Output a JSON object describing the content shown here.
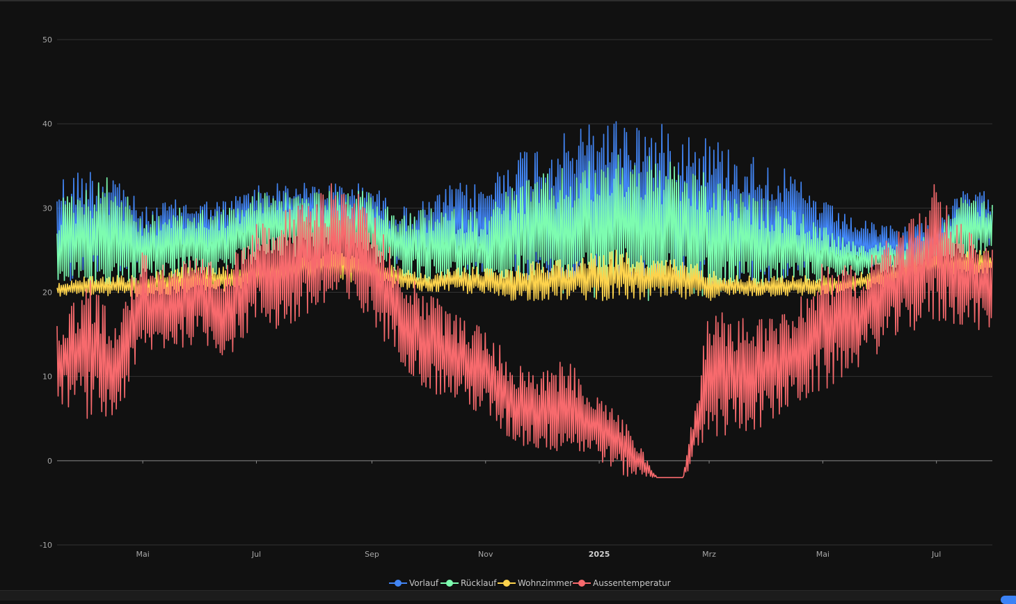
{
  "chart_data": {
    "type": "line",
    "title": "",
    "xlabel": "",
    "ylabel": "",
    "ylim": [
      -10,
      50
    ],
    "y_ticks": [
      50,
      40,
      30,
      20,
      10,
      0,
      -10
    ],
    "grid": true,
    "legend_position": "bottom-center",
    "x_range": [
      "2024-03-16",
      "2025-07-31"
    ],
    "x_ticks": [
      {
        "label": "Mai",
        "date": "2024-05-01",
        "bold": false
      },
      {
        "label": "Jul",
        "date": "2024-07-01",
        "bold": false
      },
      {
        "label": "Sep",
        "date": "2024-09-01",
        "bold": false
      },
      {
        "label": "Nov",
        "date": "2024-11-01",
        "bold": false
      },
      {
        "label": "2025",
        "date": "2025-01-01",
        "bold": true
      },
      {
        "label": "Mrz",
        "date": "2025-03-01",
        "bold": false
      },
      {
        "label": "Mai",
        "date": "2025-05-01",
        "bold": false
      },
      {
        "label": "Jul",
        "date": "2025-07-01",
        "bold": false
      }
    ],
    "series": [
      {
        "name": "Vorlauf",
        "color": "#4285f4",
        "points": [
          [
            "2024-03-16",
            34,
            20
          ],
          [
            "2024-04-01",
            35,
            21
          ],
          [
            "2024-04-15",
            35,
            22
          ],
          [
            "2024-05-01",
            30,
            22
          ],
          [
            "2024-05-15",
            31,
            23
          ],
          [
            "2024-06-01",
            31,
            24
          ],
          [
            "2024-06-15",
            31,
            24
          ],
          [
            "2024-07-01",
            33,
            25
          ],
          [
            "2024-07-15",
            33,
            26
          ],
          [
            "2024-08-01",
            33,
            26
          ],
          [
            "2024-08-15",
            33,
            26
          ],
          [
            "2024-09-01",
            33,
            25
          ],
          [
            "2024-09-15",
            30,
            23
          ],
          [
            "2024-10-01",
            31,
            23
          ],
          [
            "2024-10-15",
            33,
            23
          ],
          [
            "2024-11-01",
            33,
            22
          ],
          [
            "2024-11-15",
            37,
            22
          ],
          [
            "2024-12-01",
            38,
            21
          ],
          [
            "2024-12-15",
            39,
            21
          ],
          [
            "2025-01-01",
            41,
            21
          ],
          [
            "2025-01-15",
            41,
            21
          ],
          [
            "2025-02-01",
            40,
            20
          ],
          [
            "2025-02-15",
            40,
            20
          ],
          [
            "2025-03-01",
            39,
            20
          ],
          [
            "2025-03-15",
            37,
            21
          ],
          [
            "2025-04-01",
            36,
            21
          ],
          [
            "2025-04-15",
            34,
            22
          ],
          [
            "2025-05-01",
            31,
            22
          ],
          [
            "2025-05-15",
            29,
            23
          ],
          [
            "2025-06-01",
            28,
            23
          ],
          [
            "2025-06-15",
            28,
            23
          ],
          [
            "2025-07-01",
            29,
            24
          ],
          [
            "2025-07-15",
            32,
            25
          ],
          [
            "2025-07-31",
            32,
            25
          ]
        ]
      },
      {
        "name": "Rücklauf",
        "color": "#7dfcb0",
        "points": [
          [
            "2024-03-16",
            31,
            19
          ],
          [
            "2024-04-01",
            33,
            20
          ],
          [
            "2024-04-15",
            34,
            20
          ],
          [
            "2024-05-01",
            29,
            21
          ],
          [
            "2024-05-15",
            30,
            21
          ],
          [
            "2024-06-01",
            30,
            22
          ],
          [
            "2024-06-15",
            30,
            22
          ],
          [
            "2024-07-01",
            32,
            23
          ],
          [
            "2024-07-15",
            32,
            24
          ],
          [
            "2024-08-01",
            32,
            24
          ],
          [
            "2024-08-15",
            32,
            24
          ],
          [
            "2024-09-01",
            32,
            23
          ],
          [
            "2024-09-15",
            29,
            22
          ],
          [
            "2024-10-01",
            30,
            21
          ],
          [
            "2024-10-15",
            30,
            21
          ],
          [
            "2024-11-01",
            30,
            20
          ],
          [
            "2024-11-15",
            33,
            20
          ],
          [
            "2024-12-01",
            34,
            20
          ],
          [
            "2024-12-15",
            35,
            19
          ],
          [
            "2025-01-01",
            36,
            19
          ],
          [
            "2025-01-15",
            37,
            19
          ],
          [
            "2025-02-01",
            36,
            19
          ],
          [
            "2025-02-15",
            35,
            19
          ],
          [
            "2025-03-01",
            34,
            19
          ],
          [
            "2025-03-15",
            32,
            20
          ],
          [
            "2025-04-01",
            31,
            20
          ],
          [
            "2025-04-15",
            30,
            21
          ],
          [
            "2025-05-01",
            28,
            21
          ],
          [
            "2025-05-15",
            26,
            22
          ],
          [
            "2025-06-01",
            26,
            22
          ],
          [
            "2025-06-15",
            26,
            22
          ],
          [
            "2025-07-01",
            27,
            23
          ],
          [
            "2025-07-15",
            32,
            24
          ],
          [
            "2025-07-31",
            31,
            24
          ]
        ]
      },
      {
        "name": "Wohnzimmer",
        "color": "#fdd34d",
        "points": [
          [
            "2024-03-16",
            21,
            19.5
          ],
          [
            "2024-04-01",
            22,
            19.5
          ],
          [
            "2024-04-15",
            22,
            19.5
          ],
          [
            "2024-05-01",
            22,
            19.5
          ],
          [
            "2024-05-15",
            23,
            19.5
          ],
          [
            "2024-06-01",
            23,
            20
          ],
          [
            "2024-06-15",
            23,
            20
          ],
          [
            "2024-07-01",
            24,
            20.5
          ],
          [
            "2024-07-15",
            24,
            21
          ],
          [
            "2024-08-01",
            25,
            21
          ],
          [
            "2024-08-15",
            25,
            21
          ],
          [
            "2024-09-01",
            24,
            21
          ],
          [
            "2024-09-15",
            23,
            20.5
          ],
          [
            "2024-10-01",
            22,
            20
          ],
          [
            "2024-10-15",
            23,
            20
          ],
          [
            "2024-11-01",
            23,
            19.5
          ],
          [
            "2024-11-15",
            23,
            19
          ],
          [
            "2024-12-01",
            24,
            19
          ],
          [
            "2024-12-15",
            24,
            19
          ],
          [
            "2025-01-01",
            25,
            19
          ],
          [
            "2025-01-15",
            25,
            19
          ],
          [
            "2025-02-01",
            24,
            19
          ],
          [
            "2025-02-15",
            24,
            19
          ],
          [
            "2025-03-01",
            23,
            19
          ],
          [
            "2025-03-15",
            22,
            19.5
          ],
          [
            "2025-04-01",
            22,
            19.5
          ],
          [
            "2025-04-15",
            22,
            19.5
          ],
          [
            "2025-05-01",
            22,
            19.5
          ],
          [
            "2025-05-15",
            22,
            20
          ],
          [
            "2025-06-01",
            23,
            20.5
          ],
          [
            "2025-06-15",
            24,
            21
          ],
          [
            "2025-07-01",
            25,
            22
          ],
          [
            "2025-07-15",
            25,
            22
          ],
          [
            "2025-07-31",
            25,
            22
          ]
        ]
      },
      {
        "name": "Aussentemperatur",
        "color": "#f76a6d",
        "points": [
          [
            "2024-03-16",
            16,
            7
          ],
          [
            "2024-04-01",
            22,
            5
          ],
          [
            "2024-04-15",
            18,
            4
          ],
          [
            "2024-05-01",
            25,
            12
          ],
          [
            "2024-05-15",
            24,
            13
          ],
          [
            "2024-06-01",
            24,
            14
          ],
          [
            "2024-06-15",
            23,
            12
          ],
          [
            "2024-07-01",
            30,
            16
          ],
          [
            "2024-07-15",
            30,
            15
          ],
          [
            "2024-08-01",
            31,
            17
          ],
          [
            "2024-08-15",
            34,
            18
          ],
          [
            "2024-09-01",
            30,
            16
          ],
          [
            "2024-09-15",
            24,
            12
          ],
          [
            "2024-10-01",
            20,
            8
          ],
          [
            "2024-10-15",
            18,
            7
          ],
          [
            "2024-11-01",
            16,
            5
          ],
          [
            "2024-11-15",
            12,
            2
          ],
          [
            "2024-12-01",
            11,
            1
          ],
          [
            "2024-12-15",
            12,
            1
          ],
          [
            "2025-01-01",
            8,
            0
          ],
          [
            "2025-01-15",
            5,
            -2
          ],
          [
            "2025-02-01",
            -2,
            -2
          ],
          [
            "2025-02-15",
            -2,
            -2
          ],
          [
            "2025-03-01",
            18,
            2
          ],
          [
            "2025-03-15",
            18,
            3
          ],
          [
            "2025-04-01",
            17,
            4
          ],
          [
            "2025-04-15",
            19,
            6
          ],
          [
            "2025-05-01",
            24,
            8
          ],
          [
            "2025-05-15",
            23,
            10
          ],
          [
            "2025-06-01",
            26,
            13
          ],
          [
            "2025-06-15",
            28,
            15
          ],
          [
            "2025-07-01",
            34,
            16
          ],
          [
            "2025-07-15",
            28,
            16
          ],
          [
            "2025-07-31",
            26,
            15
          ]
        ]
      }
    ]
  }
}
